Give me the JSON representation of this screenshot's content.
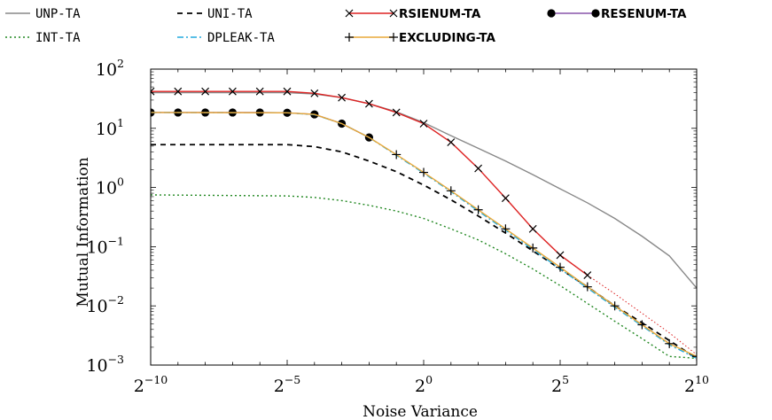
{
  "chart_data": {
    "type": "line",
    "xlabel": "Noise Variance",
    "ylabel": "Mutual Information",
    "xscale": "log2",
    "yscale": "log10",
    "xlim": [
      0.0009765625,
      1024
    ],
    "ylim": [
      0.001,
      100
    ],
    "x_tick_labels": [
      {
        "base": "2",
        "exp": "−10",
        "value": 0.0009765625
      },
      {
        "base": "2",
        "exp": "−5",
        "value": 0.03125
      },
      {
        "base": "2",
        "exp": "0",
        "value": 1
      },
      {
        "base": "2",
        "exp": "5",
        "value": 32
      },
      {
        "base": "2",
        "exp": "10",
        "value": 1024
      }
    ],
    "y_tick_labels": [
      {
        "base": "10",
        "exp": "−3",
        "value": 0.001
      },
      {
        "base": "10",
        "exp": "−2",
        "value": 0.01
      },
      {
        "base": "10",
        "exp": "−1",
        "value": 0.1
      },
      {
        "base": "10",
        "exp": "0",
        "value": 1
      },
      {
        "base": "10",
        "exp": "1",
        "value": 10
      },
      {
        "base": "10",
        "exp": "2",
        "value": 100
      }
    ],
    "legend_position": "top",
    "series": [
      {
        "name": "UNP-TA",
        "color": "#888888",
        "dash": "solid",
        "marker": "none",
        "bold_label": false,
        "dash_tail": false,
        "x": [
          0.0009765625,
          0.03125,
          0.0625,
          0.125,
          0.25,
          0.5,
          1,
          2,
          4,
          8,
          16,
          32,
          64,
          128,
          256,
          512,
          1024
        ],
        "y": [
          40,
          40,
          38,
          33,
          26,
          19,
          12.5,
          7.5,
          4.6,
          2.8,
          1.65,
          0.95,
          0.55,
          0.3,
          0.15,
          0.07,
          0.02
        ]
      },
      {
        "name": "UNI-TA",
        "color": "#000000",
        "dash": "6,5",
        "marker": "none",
        "bold_label": false,
        "dash_tail": false,
        "x": [
          0.0009765625,
          0.03125,
          0.0625,
          0.125,
          0.25,
          0.5,
          1,
          2,
          4,
          8,
          16,
          32,
          64,
          128,
          256,
          512,
          1024
        ],
        "y": [
          5.3,
          5.3,
          4.9,
          4,
          2.8,
          1.85,
          1.1,
          0.62,
          0.33,
          0.17,
          0.085,
          0.042,
          0.021,
          0.01,
          0.0052,
          0.0026,
          0.0013
        ]
      },
      {
        "name": "RSIENUM-TA",
        "color": "#dd2222",
        "dash": "solid",
        "marker": "x",
        "bold_label": true,
        "dash_tail": true,
        "x": [
          0.0009765625,
          0.001953125,
          0.00390625,
          0.0078125,
          0.015625,
          0.03125,
          0.0625,
          0.125,
          0.25,
          0.5,
          1,
          2,
          4,
          8,
          16,
          32,
          64
        ],
        "y": [
          42,
          42,
          42,
          42,
          42,
          42,
          39,
          33,
          26,
          18.5,
          12,
          5.8,
          2.1,
          0.66,
          0.2,
          0.072,
          0.033
        ],
        "tail_x": [
          64,
          128,
          256,
          512,
          1024
        ],
        "tail_y": [
          0.033,
          0.016,
          0.0075,
          0.0035,
          0.0015
        ]
      },
      {
        "name": "RESENUM-TA",
        "color": "#8855aa",
        "dash": "solid",
        "marker": "dot",
        "bold_label": true,
        "dash_tail": false,
        "x": [
          0.0009765625,
          0.001953125,
          0.00390625,
          0.0078125,
          0.015625,
          0.03125,
          0.0625,
          0.125,
          0.25
        ],
        "y": [
          18.5,
          18.5,
          18.5,
          18.5,
          18.5,
          18.3,
          17.2,
          12,
          7
        ]
      },
      {
        "name": "INT-TA",
        "color": "#228822",
        "dash": "2,3",
        "marker": "none",
        "bold_label": false,
        "dash_tail": false,
        "x": [
          0.0009765625,
          0.03125,
          0.0625,
          0.125,
          0.25,
          0.5,
          1,
          2,
          4,
          8,
          16,
          32,
          64,
          128,
          256,
          512,
          1024
        ],
        "y": [
          0.75,
          0.72,
          0.68,
          0.6,
          0.5,
          0.4,
          0.3,
          0.2,
          0.13,
          0.076,
          0.042,
          0.022,
          0.011,
          0.0055,
          0.0028,
          0.0014,
          0.0013
        ]
      },
      {
        "name": "DPLEAK-TA",
        "color": "#22aadd",
        "dash": "7,3,2,3",
        "marker": "none",
        "bold_label": false,
        "dash_tail": false,
        "x": [
          0.0009765625,
          0.03125,
          0.0625,
          0.125,
          0.25,
          0.5,
          1,
          2,
          4,
          8,
          16,
          32,
          64,
          128,
          256,
          512,
          1024
        ],
        "y": [
          18.5,
          18.3,
          17,
          12,
          7,
          3.5,
          1.75,
          0.85,
          0.4,
          0.19,
          0.09,
          0.042,
          0.02,
          0.0095,
          0.0046,
          0.0022,
          0.0013
        ]
      },
      {
        "name": "EXCLUDING-TA",
        "color": "#e8a838",
        "dash": "solid",
        "marker": "plus",
        "bold_label": true,
        "dash_tail": false,
        "x": [
          0.0009765625,
          0.03125,
          0.0625,
          0.125,
          0.25,
          0.5,
          1,
          2,
          4,
          8,
          16,
          32,
          64,
          128,
          256,
          512,
          1024
        ],
        "y": [
          18.5,
          18.3,
          17.2,
          12,
          7,
          3.6,
          1.8,
          0.88,
          0.42,
          0.2,
          0.095,
          0.045,
          0.021,
          0.01,
          0.0048,
          0.0023,
          0.0014
        ],
        "marker_x": [
          0.5,
          1,
          2,
          4,
          8,
          16,
          32,
          64,
          128,
          256,
          512,
          1024
        ],
        "marker_y": [
          3.6,
          1.8,
          0.88,
          0.42,
          0.2,
          0.095,
          0.045,
          0.021,
          0.01,
          0.0048,
          0.0023,
          0.0014
        ]
      }
    ]
  }
}
